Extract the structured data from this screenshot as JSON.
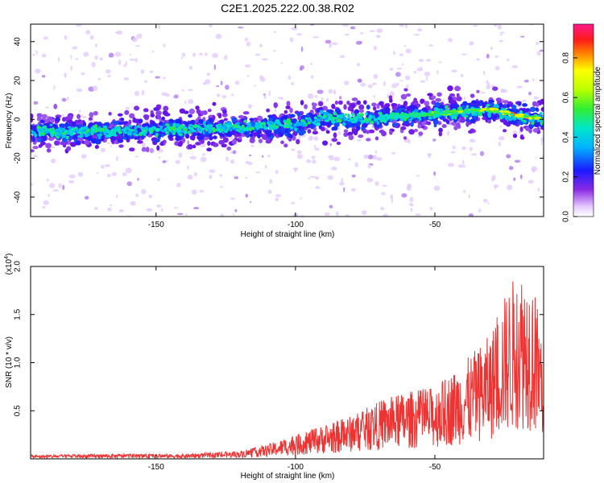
{
  "title": "C2E1.2025.222.00.38.R02",
  "chart_data": [
    {
      "type": "heatmap",
      "xlabel": "Height of straight line (km)",
      "ylabel": "Frequency (Hz)",
      "xlim": [
        -195,
        -11
      ],
      "ylim": [
        -50,
        49
      ],
      "x_ticks": [
        {
          "value": -150,
          "label": "-150"
        },
        {
          "value": -100,
          "label": "-100"
        },
        {
          "value": -50,
          "label": "-50"
        }
      ],
      "y_ticks": [
        {
          "value": 40,
          "label": "40"
        },
        {
          "value": 20,
          "label": "20"
        },
        {
          "value": 0,
          "label": "0"
        },
        {
          "value": -20,
          "label": "-20"
        },
        {
          "value": -40,
          "label": "-40"
        }
      ],
      "colorbar": {
        "label": "Normalized spectral amplitude",
        "range": [
          0,
          0.97
        ],
        "ticks": [
          {
            "value": 0.0,
            "label": "0.0"
          },
          {
            "value": 0.2,
            "label": "0.2"
          },
          {
            "value": 0.4,
            "label": "0.4"
          },
          {
            "value": 0.6,
            "label": "0.6"
          },
          {
            "value": 0.8,
            "label": "0.8"
          }
        ]
      },
      "ridge": {
        "description_points": [
          {
            "x": -195,
            "y": -6
          },
          {
            "x": -180,
            "y": -6.5
          },
          {
            "x": -160,
            "y": -6
          },
          {
            "x": -140,
            "y": -5
          },
          {
            "x": -120,
            "y": -4
          },
          {
            "x": -100,
            "y": -3
          },
          {
            "x": -90,
            "y": 1
          },
          {
            "x": -80,
            "y": 0
          },
          {
            "x": -70,
            "y": 1
          },
          {
            "x": -60,
            "y": 2
          },
          {
            "x": -50,
            "y": 3
          },
          {
            "x": -40,
            "y": 4
          },
          {
            "x": -30,
            "y": 5
          },
          {
            "x": -20,
            "y": 2
          },
          {
            "x": -11,
            "y": 0
          }
        ],
        "peak_amplitude_near_x": [
          -55,
          -18
        ]
      }
    },
    {
      "type": "line",
      "xlabel": "Height of straight line (km)",
      "ylabel": "SNR (10 * v/v)",
      "y_multiplier_label": "(x10",
      "y_multiplier_exp": "4",
      "y_multiplier_close": ")",
      "xlim": [
        -195,
        -11
      ],
      "ylim": [
        0,
        2.0
      ],
      "color": "#ee3333",
      "x_ticks": [
        {
          "value": -150,
          "label": "-150"
        },
        {
          "value": -100,
          "label": "-100"
        },
        {
          "value": -50,
          "label": "-50"
        }
      ],
      "y_ticks": [
        {
          "value": 0.5,
          "label": "0.5"
        },
        {
          "value": 1.0,
          "label": "1.0"
        },
        {
          "value": 1.5,
          "label": "1.5"
        },
        {
          "value": 2.0,
          "label": "2.0"
        }
      ],
      "envelope": [
        {
          "x": -195,
          "y": 0.04
        },
        {
          "x": -170,
          "y": 0.05
        },
        {
          "x": -140,
          "y": 0.05
        },
        {
          "x": -120,
          "y": 0.08
        },
        {
          "x": -110,
          "y": 0.15
        },
        {
          "x": -100,
          "y": 0.25
        },
        {
          "x": -90,
          "y": 0.35
        },
        {
          "x": -80,
          "y": 0.45
        },
        {
          "x": -70,
          "y": 0.6
        },
        {
          "x": -60,
          "y": 0.7
        },
        {
          "x": -50,
          "y": 0.75
        },
        {
          "x": -40,
          "y": 1.0
        },
        {
          "x": -30,
          "y": 1.3
        },
        {
          "x": -25,
          "y": 1.7
        },
        {
          "x": -20,
          "y": 2.0
        },
        {
          "x": -15,
          "y": 1.9
        },
        {
          "x": -11,
          "y": 1.25
        }
      ]
    }
  ]
}
